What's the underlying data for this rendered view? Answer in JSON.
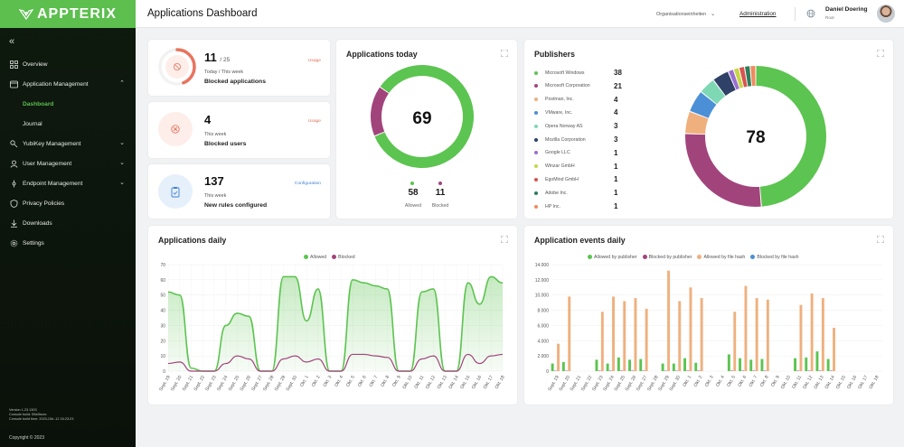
{
  "app": {
    "logo_text": "APPTERIX",
    "copyright": "Copyright © 2023",
    "version_lines": [
      "Version 1.23.1303",
      "Console build: 59a9bcec",
      "Console build time: 2023-Okt.-12 16:23:23"
    ]
  },
  "sidebar": {
    "items": [
      {
        "label": "Overview",
        "icon": "grid-icon"
      },
      {
        "label": "Application Management",
        "icon": "window-icon",
        "chevron": "up"
      },
      {
        "label": "Dashboard",
        "sub": true,
        "active": true
      },
      {
        "label": "Journal",
        "sub": true
      },
      {
        "label": "YubiKey Management",
        "icon": "key-icon",
        "chevron": "down"
      },
      {
        "label": "User Management",
        "icon": "user-icon",
        "chevron": "down"
      },
      {
        "label": "Endpoint Management",
        "icon": "endpoint-icon",
        "chevron": "down"
      },
      {
        "label": "Privacy Policies",
        "icon": "shield-icon"
      },
      {
        "label": "Downloads",
        "icon": "download-icon"
      },
      {
        "label": "Settings",
        "icon": "gear-icon"
      }
    ]
  },
  "header": {
    "title": "Applications Dashboard",
    "org_select": "Organisationseinheiten",
    "admin_link": "Administration",
    "user_name": "Daniel Doering",
    "user_role": "Root"
  },
  "stats": [
    {
      "value": "11",
      "total": "/ 25",
      "sub": "Today / This week",
      "desc": "Blocked applications",
      "link": "Usage",
      "ring_fraction": 0.44,
      "color": "#e8745f"
    },
    {
      "value": "4",
      "sub": "This week",
      "desc": "Blocked users",
      "link": "Usage",
      "color": "#e8745f"
    },
    {
      "value": "137",
      "sub": "This week",
      "desc": "New rules configured",
      "link": "Configuration",
      "color": "#3f7fd4"
    }
  ],
  "apps_today": {
    "title": "Applications today",
    "total": "69",
    "allowed": "58",
    "allowed_label": "Allowed",
    "blocked": "11",
    "blocked_label": "Blocked",
    "allowed_color": "#5cc450",
    "blocked_color": "#a2447c"
  },
  "publishers": {
    "title": "Publishers",
    "total": "78",
    "items": [
      {
        "name": "Microsoft Windows",
        "count": "38",
        "color": "#5cc450"
      },
      {
        "name": "Microsoft Corporation",
        "count": "21",
        "color": "#a2447c"
      },
      {
        "name": "Postman, Inc.",
        "count": "4",
        "color": "#efb07e"
      },
      {
        "name": "VMware, Inc.",
        "count": "4",
        "color": "#4b8fd6"
      },
      {
        "name": "Opera Norway AS",
        "count": "3",
        "color": "#7fd8b4"
      },
      {
        "name": "Mozilla Corporation",
        "count": "3",
        "color": "#2f4166"
      },
      {
        "name": "Google LLC",
        "count": "1",
        "color": "#9a6fd0"
      },
      {
        "name": "Winzar GmbH",
        "count": "1",
        "color": "#c7d64a"
      },
      {
        "name": "EgoMind GmbH",
        "count": "1",
        "color": "#d9534f"
      },
      {
        "name": "Adobe Inc.",
        "count": "1",
        "color": "#2e7d5b"
      },
      {
        "name": "HP Inc.",
        "count": "1",
        "color": "#f08a5d"
      }
    ]
  },
  "chart_data": [
    {
      "type": "area",
      "title": "Applications daily",
      "ylim": [
        0,
        70
      ],
      "yticks": [
        0,
        10,
        20,
        30,
        40,
        50,
        60,
        70
      ],
      "categories": [
        "Sept. 19",
        "Sept. 20",
        "Sept. 21",
        "Sept. 22",
        "Sept. 23",
        "Sept. 24",
        "Sept. 25",
        "Sept. 26",
        "Sept. 27",
        "Sept. 28",
        "Sept. 29",
        "Sept. 30",
        "Okt. 1",
        "Okt. 2",
        "Okt. 3",
        "Okt. 4",
        "Okt. 5",
        "Okt. 6",
        "Okt. 7",
        "Okt. 8",
        "Okt. 9",
        "Okt. 10",
        "Okt. 11",
        "Okt. 12",
        "Okt. 13",
        "Okt. 14",
        "Okt. 15",
        "Okt. 16",
        "Okt. 17",
        "Okt. 18"
      ],
      "series": [
        {
          "name": "Allowed",
          "color": "#5cc450",
          "values": [
            52,
            50,
            2,
            0,
            0,
            30,
            38,
            36,
            0,
            0,
            62,
            62,
            33,
            54,
            0,
            0,
            60,
            58,
            56,
            54,
            0,
            0,
            52,
            54,
            0,
            0,
            58,
            44,
            62,
            58
          ]
        },
        {
          "name": "Blocked",
          "color": "#a2447c",
          "values": [
            5,
            6,
            0,
            0,
            0,
            5,
            10,
            8,
            0,
            0,
            8,
            10,
            6,
            8,
            0,
            0,
            11,
            11,
            10,
            9,
            0,
            0,
            8,
            10,
            0,
            0,
            11,
            5,
            10,
            11
          ]
        }
      ]
    },
    {
      "type": "bar",
      "title": "Application events daily",
      "ylim": [
        0,
        14000
      ],
      "yticks": [
        0,
        2000,
        4000,
        6000,
        8000,
        10000,
        12000,
        14000
      ],
      "ytick_labels": [
        "0",
        "2.000",
        "4.000",
        "6.000",
        "8.000",
        "10.000",
        "12.000",
        "14.000"
      ],
      "categories": [
        "Sept. 19",
        "Sept. 20",
        "Sept. 21",
        "Sept. 22",
        "Sept. 23",
        "Sept. 24",
        "Sept. 25",
        "Sept. 26",
        "Sept. 27",
        "Sept. 28",
        "Sept. 29",
        "Sept. 30",
        "Okt. 1",
        "Okt. 2",
        "Okt. 3",
        "Okt. 4",
        "Okt. 5",
        "Okt. 6",
        "Okt. 7",
        "Okt. 8",
        "Okt. 9",
        "Okt. 10",
        "Okt. 11",
        "Okt. 12",
        "Okt. 13",
        "Okt. 14",
        "Okt. 15",
        "Okt. 16",
        "Okt. 17",
        "Okt. 18"
      ],
      "series": [
        {
          "name": "Allowed by publisher",
          "color": "#5cc450",
          "values": [
            1000,
            1200,
            0,
            0,
            1500,
            1000,
            1800,
            1500,
            1600,
            0,
            1000,
            1000,
            1700,
            1100,
            0,
            0,
            2200,
            1700,
            1500,
            1600,
            0,
            0,
            1700,
            1800,
            2600,
            1600,
            0,
            0,
            0,
            0
          ]
        },
        {
          "name": "Blocked by publisher",
          "color": "#a2447c",
          "values": [
            50,
            50,
            0,
            0,
            60,
            60,
            60,
            60,
            60,
            0,
            50,
            50,
            60,
            60,
            0,
            0,
            60,
            60,
            60,
            60,
            0,
            0,
            60,
            60,
            60,
            60,
            0,
            0,
            0,
            0
          ]
        },
        {
          "name": "Allowed by file hash",
          "color": "#efb07e",
          "values": [
            3600,
            9800,
            0,
            0,
            7800,
            9800,
            9200,
            9600,
            8200,
            0,
            13200,
            9200,
            11000,
            9600,
            0,
            0,
            7800,
            11200,
            9600,
            9400,
            0,
            0,
            8700,
            10200,
            9600,
            5700,
            0,
            0,
            0,
            0
          ]
        },
        {
          "name": "Blocked by file hash",
          "color": "#4b8fd6",
          "values": [
            0,
            0,
            0,
            0,
            0,
            0,
            0,
            0,
            0,
            0,
            0,
            0,
            0,
            0,
            0,
            0,
            0,
            0,
            0,
            0,
            0,
            0,
            0,
            0,
            0,
            0,
            0,
            0,
            0,
            0
          ]
        }
      ]
    }
  ]
}
